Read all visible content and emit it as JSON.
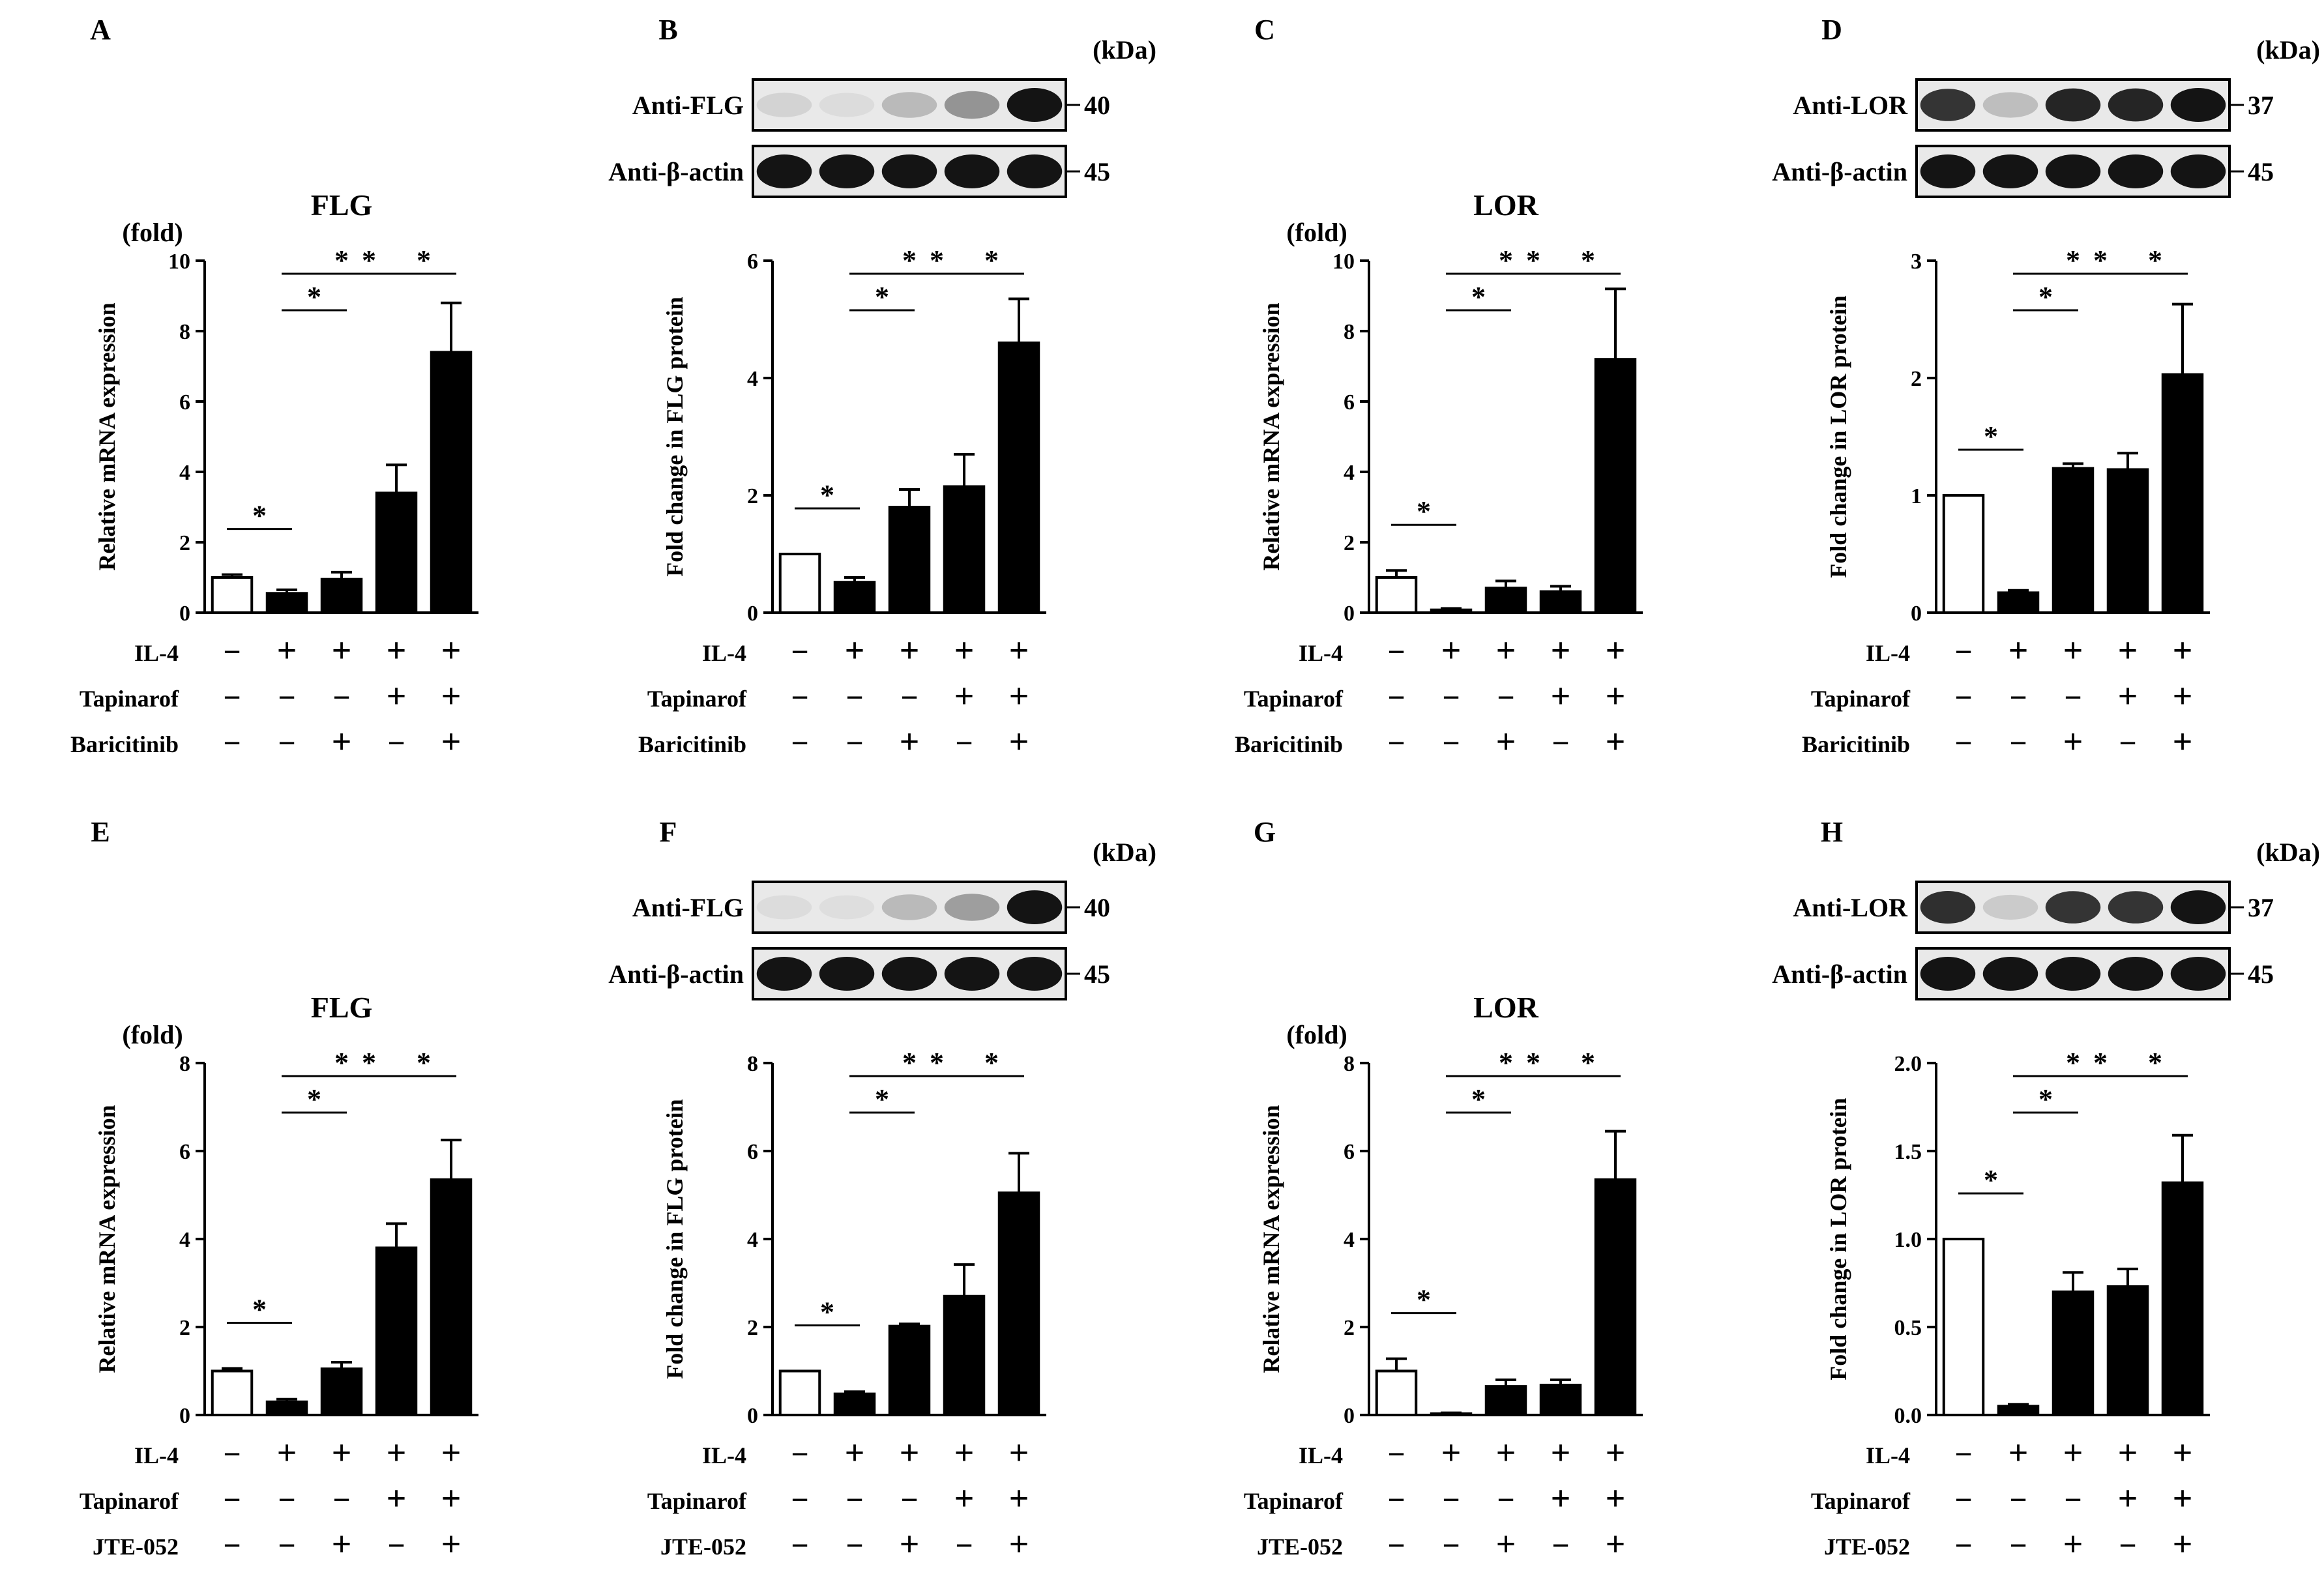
{
  "figure": {
    "kda_label": "(kDa)",
    "fold_label": "(fold)",
    "sig_symbol": "*",
    "plus_symbol": "+",
    "minus_symbol": "−",
    "treatment_labels_top": [
      "IL-4",
      "Tapinarof",
      "Baricitinib"
    ],
    "treatment_labels_bottom": [
      "IL-4",
      "Tapinarof",
      "JTE-052"
    ],
    "conditions": [
      [
        "−",
        "+",
        "+",
        "+",
        "+"
      ],
      [
        "−",
        "−",
        "−",
        "+",
        "+"
      ],
      [
        "−",
        "−",
        "+",
        "−",
        "+"
      ]
    ],
    "colors": {
      "text": "#000000",
      "bar_fill": "#000000",
      "control_fill": "#ffffff",
      "blot_bg": "#e9e9e9",
      "band": "#141414"
    }
  },
  "chart_data": [
    {
      "panel": "A",
      "type": "bar",
      "title": "FLG",
      "ylabel": "Relative mRNA expression",
      "ylim": [
        0,
        10
      ],
      "yticks": [
        "0",
        "2",
        "4",
        "6",
        "8",
        "10"
      ],
      "show_fold": true,
      "values": [
        1.0,
        0.55,
        0.95,
        3.4,
        7.4
      ],
      "errors": [
        0.08,
        0.1,
        0.2,
        0.8,
        1.4
      ],
      "significance": [
        "*",
        "*",
        "*",
        "*",
        "*"
      ]
    },
    {
      "panel": "B",
      "type": "bar",
      "title": "",
      "ylabel": "Fold change in FLG protein",
      "ylim": [
        0,
        6
      ],
      "yticks": [
        "0",
        "2",
        "4",
        "6"
      ],
      "show_fold": false,
      "values": [
        1.0,
        0.52,
        1.8,
        2.15,
        4.6
      ],
      "errors": [
        0.0,
        0.08,
        0.3,
        0.55,
        0.75
      ],
      "significance": [
        "*",
        "*",
        "*",
        "*",
        "*"
      ],
      "blot": {
        "rows": [
          {
            "label": "Anti-FLG",
            "kda": "40"
          },
          {
            "label": "Anti-β-actin",
            "kda": "45"
          }
        ],
        "band_intensity": [
          [
            0.1,
            0.06,
            0.22,
            0.4,
            1.0
          ],
          [
            1,
            1,
            1,
            1,
            1
          ]
        ]
      }
    },
    {
      "panel": "C",
      "type": "bar",
      "title": "LOR",
      "ylabel": "Relative mRNA expression",
      "ylim": [
        0,
        10
      ],
      "yticks": [
        "0",
        "2",
        "4",
        "6",
        "8",
        "10"
      ],
      "show_fold": true,
      "values": [
        1.0,
        0.08,
        0.7,
        0.6,
        7.2
      ],
      "errors": [
        0.2,
        0.04,
        0.2,
        0.15,
        2.0
      ],
      "significance": [
        "*",
        "*",
        "*",
        "*",
        "*"
      ]
    },
    {
      "panel": "D",
      "type": "bar",
      "title": "",
      "ylabel": "Fold change in LOR protein",
      "ylim": [
        0,
        3
      ],
      "yticks": [
        "0",
        "1",
        "2",
        "3"
      ],
      "show_fold": false,
      "values": [
        1.0,
        0.17,
        1.23,
        1.22,
        2.03
      ],
      "errors": [
        0.0,
        0.02,
        0.04,
        0.14,
        0.6
      ],
      "significance": [
        "*",
        "*",
        "*",
        "*",
        "*"
      ],
      "blot": {
        "rows": [
          {
            "label": "Anti-LOR",
            "kda": "37"
          },
          {
            "label": "Anti-β-actin",
            "kda": "45"
          }
        ],
        "band_intensity": [
          [
            0.85,
            0.2,
            0.92,
            0.92,
            1.0
          ],
          [
            1,
            1,
            1,
            1,
            1
          ]
        ]
      }
    },
    {
      "panel": "E",
      "type": "bar",
      "title": "FLG",
      "ylabel": "Relative mRNA expression",
      "ylim": [
        0,
        8
      ],
      "yticks": [
        "0",
        "2",
        "4",
        "6",
        "8"
      ],
      "show_fold": true,
      "values": [
        1.0,
        0.3,
        1.05,
        3.8,
        5.35
      ],
      "errors": [
        0.06,
        0.06,
        0.15,
        0.55,
        0.9
      ],
      "significance": [
        "*",
        "*",
        "*",
        "*",
        "*"
      ]
    },
    {
      "panel": "F",
      "type": "bar",
      "title": "",
      "ylabel": "Fold change in FLG protein",
      "ylim": [
        0,
        8
      ],
      "yticks": [
        "0",
        "2",
        "4",
        "6",
        "8"
      ],
      "show_fold": false,
      "values": [
        1.0,
        0.48,
        2.02,
        2.7,
        5.05
      ],
      "errors": [
        0.0,
        0.05,
        0.05,
        0.72,
        0.9
      ],
      "significance": [
        "*",
        "*",
        "*",
        "*",
        "*"
      ],
      "blot": {
        "rows": [
          {
            "label": "Anti-FLG",
            "kda": "40"
          },
          {
            "label": "Anti-β-actin",
            "kda": "45"
          }
        ],
        "band_intensity": [
          [
            0.06,
            0.05,
            0.22,
            0.35,
            1.0
          ],
          [
            1,
            1,
            1,
            1,
            1
          ]
        ]
      }
    },
    {
      "panel": "G",
      "type": "bar",
      "title": "LOR",
      "ylabel": "Relative mRNA expression",
      "ylim": [
        0,
        8
      ],
      "yticks": [
        "0",
        "2",
        "4",
        "6",
        "8"
      ],
      "show_fold": true,
      "values": [
        1.0,
        0.03,
        0.65,
        0.68,
        5.35
      ],
      "errors": [
        0.28,
        0.02,
        0.15,
        0.12,
        1.1
      ],
      "significance": [
        "*",
        "*",
        "*",
        "*",
        "*"
      ]
    },
    {
      "panel": "H",
      "type": "bar",
      "title": "",
      "ylabel": "Fold change in LOR protein",
      "ylim": [
        0,
        2.0
      ],
      "yticks": [
        "0.0",
        "0.5",
        "1.0",
        "1.5",
        "2.0"
      ],
      "show_fold": false,
      "values": [
        1.0,
        0.05,
        0.7,
        0.73,
        1.32
      ],
      "errors": [
        0.0,
        0.01,
        0.11,
        0.1,
        0.27
      ],
      "significance": [
        "*",
        "*",
        "*",
        "*",
        "*"
      ],
      "blot": {
        "rows": [
          {
            "label": "Anti-LOR",
            "kda": "37"
          },
          {
            "label": "Anti-β-actin",
            "kda": "45"
          }
        ],
        "band_intensity": [
          [
            0.88,
            0.14,
            0.85,
            0.85,
            1.0
          ],
          [
            1,
            1,
            1,
            1,
            1
          ]
        ]
      }
    }
  ]
}
